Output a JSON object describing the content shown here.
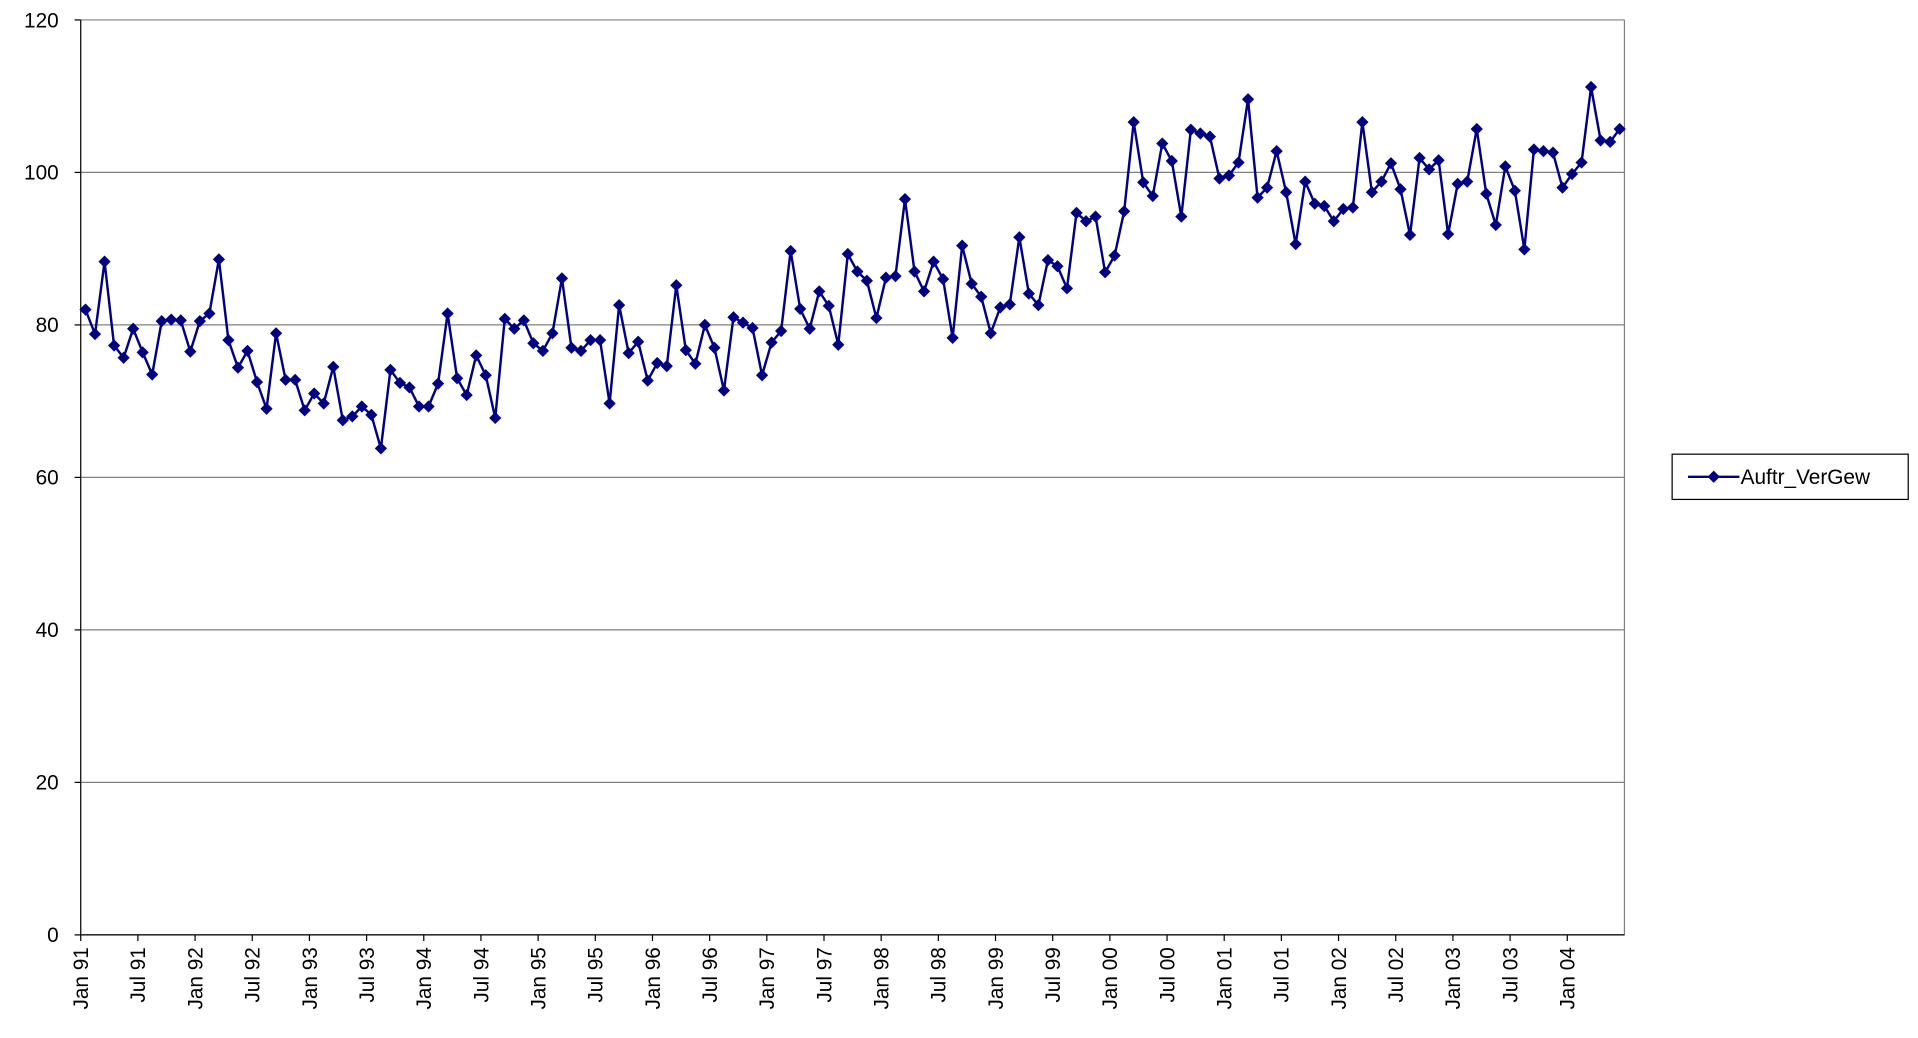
{
  "chart_data": {
    "type": "line",
    "categories": [
      "Jan 91",
      null,
      null,
      null,
      null,
      null,
      "Jul 91",
      null,
      null,
      null,
      null,
      null,
      "Jan 92",
      null,
      null,
      null,
      null,
      null,
      "Jul 92",
      null,
      null,
      null,
      null,
      null,
      "Jan 93",
      null,
      null,
      null,
      null,
      null,
      "Jul 93",
      null,
      null,
      null,
      null,
      null,
      "Jan 94",
      null,
      null,
      null,
      null,
      null,
      "Jul 94",
      null,
      null,
      null,
      null,
      null,
      "Jan 95",
      null,
      null,
      null,
      null,
      null,
      "Jul 95",
      null,
      null,
      null,
      null,
      null,
      "Jan 96",
      null,
      null,
      null,
      null,
      null,
      "Jul 96",
      null,
      null,
      null,
      null,
      null,
      "Jan 97",
      null,
      null,
      null,
      null,
      null,
      "Jul 97",
      null,
      null,
      null,
      null,
      null,
      "Jan 98",
      null,
      null,
      null,
      null,
      null,
      "Jul 98",
      null,
      null,
      null,
      null,
      null,
      "Jan 99",
      null,
      null,
      null,
      null,
      null,
      "Jul 99",
      null,
      null,
      null,
      null,
      null,
      "Jan 00",
      null,
      null,
      null,
      null,
      null,
      "Jul 00",
      null,
      null,
      null,
      null,
      null,
      "Jan 01",
      null,
      null,
      null,
      null,
      null,
      "Jul 01",
      null,
      null,
      null,
      null,
      null,
      "Jan 02",
      null,
      null,
      null,
      null,
      null,
      "Jul 02",
      null,
      null,
      null,
      null,
      null,
      "Jan 03",
      null,
      null,
      null,
      null,
      null,
      "Jul 03",
      null,
      null,
      null,
      null,
      null,
      "Jan 04",
      null,
      null,
      null,
      null,
      null
    ],
    "series": [
      {
        "name": "Auftr_VerGew",
        "color": "#000080",
        "values": [
          82,
          78.8,
          88.3,
          77.3,
          75.7,
          79.5,
          76.4,
          73.5,
          80.5,
          80.7,
          80.6,
          76.5,
          80.5,
          81.5,
          88.6,
          78,
          74.4,
          76.6,
          72.5,
          69,
          78.9,
          72.8,
          72.8,
          68.8,
          71,
          69.7,
          74.5,
          67.5,
          68,
          69.3,
          68.2,
          63.8,
          74.1,
          72.4,
          71.8,
          69.3,
          69.3,
          72.3,
          81.5,
          73,
          70.8,
          76,
          73.4,
          67.8,
          80.8,
          79.5,
          80.6,
          77.6,
          76.6,
          78.9,
          86.1,
          77,
          76.6,
          78,
          78,
          69.7,
          82.6,
          76.3,
          77.8,
          72.7,
          75,
          74.6,
          85.2,
          76.7,
          74.9,
          80,
          77,
          71.4,
          81,
          80.3,
          79.6,
          73.4,
          77.7,
          79.2,
          89.7,
          82.1,
          79.5,
          84.4,
          82.5,
          77.4,
          89.3,
          87,
          85.8,
          80.9,
          86.2,
          86.4,
          96.5,
          87,
          84.4,
          88.3,
          86,
          78.3,
          90.4,
          85.4,
          83.7,
          78.9,
          82.3,
          82.7,
          91.5,
          84.1,
          82.6,
          88.5,
          87.7,
          84.8,
          94.7,
          93.6,
          94.2,
          86.9,
          89.1,
          94.9,
          106.6,
          98.7,
          96.9,
          103.8,
          101.5,
          94.2,
          105.6,
          105.1,
          104.7,
          99.2,
          99.6,
          101.3,
          109.6,
          96.7,
          98,
          102.8,
          97.4,
          90.6,
          98.8,
          95.9,
          95.6,
          93.6,
          95.2,
          95.4,
          106.6,
          97.4,
          98.8,
          101.2,
          97.8,
          91.8,
          101.9,
          100.4,
          101.6,
          91.9,
          98.5,
          98.8,
          105.7,
          97.2,
          93.1,
          100.8,
          97.6,
          89.9,
          103,
          102.8,
          102.6,
          98,
          99.8,
          101.3,
          111.2,
          104.2,
          104,
          105.7
        ]
      }
    ],
    "ylim": [
      0,
      120
    ],
    "yticks": [
      0,
      20,
      40,
      60,
      80,
      100,
      120
    ],
    "grid": true,
    "legend": "right"
  }
}
